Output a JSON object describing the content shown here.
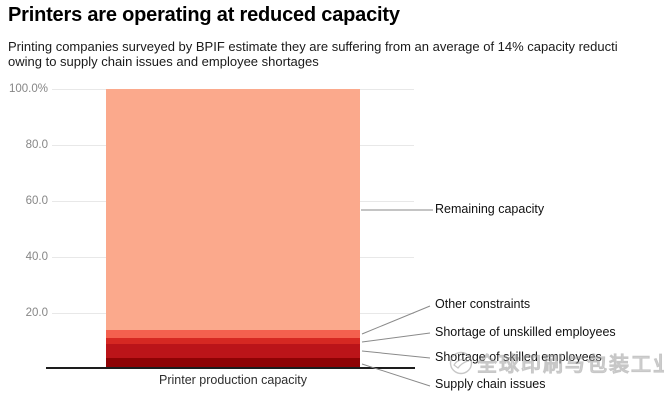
{
  "header": {
    "title": "Printers are operating at reduced capacity",
    "subtitle_line1": "Printing companies surveyed by BPIF estimate they are suffering from an average of 14% capacity reducti",
    "subtitle_line2": "owing to supply chain issues and employee shortages"
  },
  "chart_data": {
    "type": "bar",
    "stacked": true,
    "categories": [
      "Printer production capacity"
    ],
    "series": [
      {
        "name": "Remaining capacity",
        "value": 86,
        "color": "#fba98c"
      },
      {
        "name": "Other constraints",
        "value": 3,
        "color": "#f4604e"
      },
      {
        "name": "Shortage of unskilled employees",
        "value": 2,
        "color": "#d62822"
      },
      {
        "name": "Shortage of skilled employees",
        "value": 5,
        "color": "#bb1419"
      },
      {
        "name": "Supply chain issues",
        "value": 4,
        "color": "#8e0305"
      }
    ],
    "xlabel": "Printer production capacity",
    "ylabel": "",
    "ylim": [
      0,
      100
    ],
    "y_ticks": [
      "100.0%",
      "80.0",
      "60.0",
      "40.0",
      "20.0"
    ],
    "grid": true,
    "legend_position": "right-annotations"
  },
  "watermark": {
    "text": "全球印刷与包装工业"
  }
}
